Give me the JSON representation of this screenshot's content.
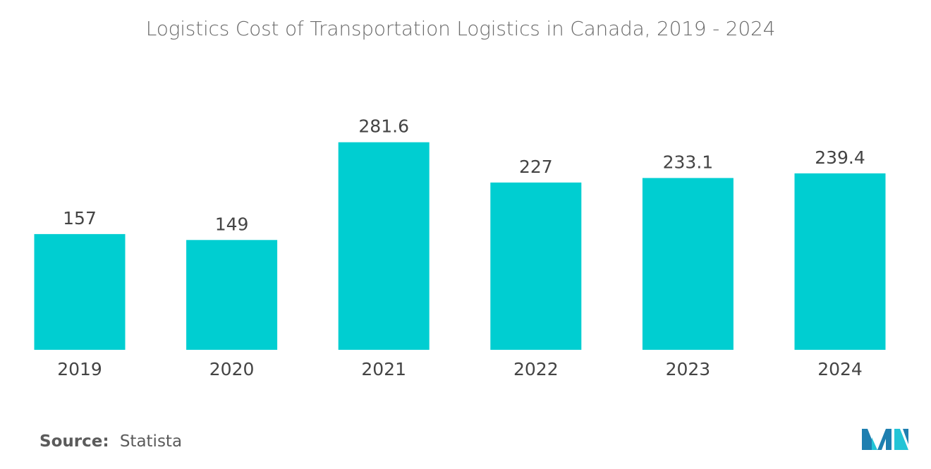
{
  "chart_data": {
    "type": "bar",
    "title": "Logistics Cost of Transportation  Logistics in Canada, 2019 - 2024",
    "categories": [
      "2019",
      "2020",
      "2021",
      "2022",
      "2023",
      "2024"
    ],
    "values": [
      157,
      149,
      281.6,
      227,
      233.1,
      239.4
    ],
    "value_labels": [
      "157",
      "149",
      "281.6",
      "227",
      "233.1",
      "239.4"
    ],
    "xlabel": "",
    "ylabel": "",
    "ylim": [
      0,
      300
    ],
    "grid": false,
    "bar_color": "#00ced1"
  },
  "source": {
    "label": "Source:",
    "value": "Statista"
  },
  "logo": {
    "icon": "mordor-intelligence-logo-icon",
    "colors": [
      "#1e7fb0",
      "#22c4d6"
    ]
  }
}
